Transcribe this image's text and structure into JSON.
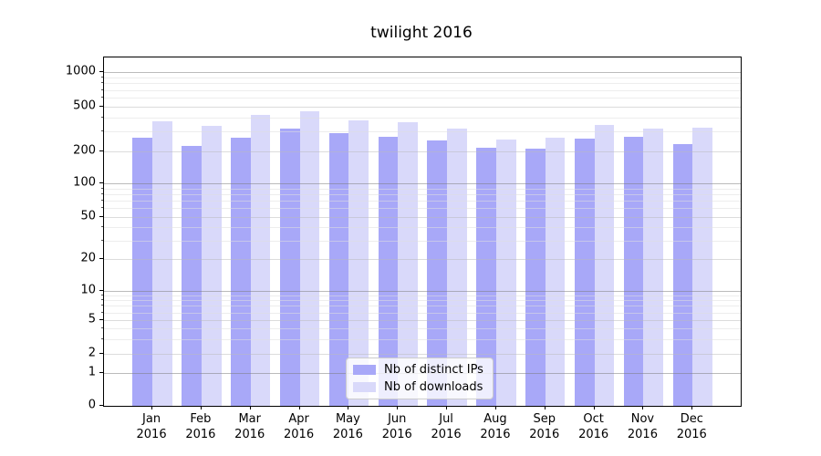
{
  "title": "twilight 2016",
  "chart_data": {
    "type": "bar",
    "title": "twilight 2016",
    "categories": [
      "Jan",
      "Feb",
      "Mar",
      "Apr",
      "May",
      "Jun",
      "Jul",
      "Aug",
      "Sep",
      "Oct",
      "Nov",
      "Dec"
    ],
    "category_year": "2016",
    "series": [
      {
        "name": "Nb of distinct IPs",
        "color": "#a8a8f8",
        "values": [
          266,
          222,
          266,
          318,
          289,
          272,
          252,
          216,
          213,
          259,
          272,
          233
        ]
      },
      {
        "name": "Nb of downloads",
        "color": "#d9d9fa",
        "values": [
          372,
          335,
          426,
          456,
          376,
          361,
          322,
          253,
          265,
          346,
          318,
          324
        ]
      }
    ],
    "xlabel": "",
    "ylabel": "",
    "yscale": "symlog",
    "ylim": [
      0,
      1400
    ],
    "yticks": [
      0,
      1,
      2,
      5,
      10,
      20,
      50,
      100,
      200,
      500,
      1000
    ],
    "yticks_minor": [
      3,
      4,
      6,
      7,
      8,
      9,
      30,
      40,
      60,
      70,
      80,
      90,
      300,
      400,
      600,
      700,
      800,
      900
    ],
    "grid": "both",
    "legend_position": "lower center"
  },
  "colors": {
    "distinct_ips": "#a8a8f8",
    "downloads": "#d9d9fa",
    "axis": "#000000",
    "background": "#ffffff"
  }
}
